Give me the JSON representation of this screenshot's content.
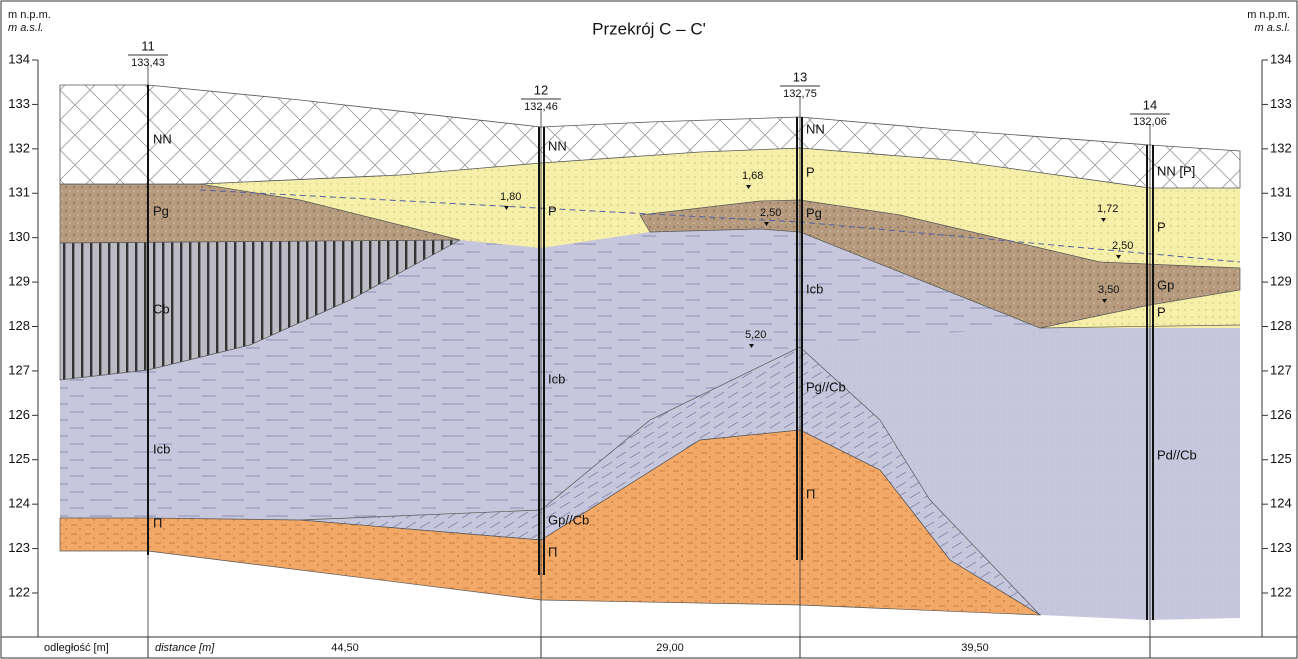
{
  "title": "Przekrój C – C'",
  "axis": {
    "left": [
      "m n.p.m.",
      "m a.s.l."
    ],
    "right": [
      "m n.p.m.",
      "m a.s.l."
    ]
  },
  "yticks": [
    134,
    133,
    132,
    131,
    130,
    129,
    128,
    127,
    126,
    125,
    124,
    123,
    122
  ],
  "boreholes": [
    {
      "id": "11",
      "elevation": "133,43",
      "layers": [
        "NN",
        "Pg",
        "Cb",
        "Icb",
        "Π"
      ],
      "water": []
    },
    {
      "id": "12",
      "elevation": "132,46",
      "layers": [
        "NN",
        "P",
        "Icb",
        "Gp//Cb",
        "Π"
      ],
      "water": [
        "1,80"
      ]
    },
    {
      "id": "13",
      "elevation": "132,75",
      "layers": [
        "NN",
        "P",
        "Pg",
        "Icb",
        "Pg//Cb",
        "Π"
      ],
      "water": [
        "1,68",
        "2,50",
        "5,20"
      ]
    },
    {
      "id": "14",
      "elevation": "132,06",
      "layers": [
        "NN [P]",
        "P",
        "Gp",
        "P",
        "Pd//Cb"
      ],
      "water": [
        "1,72",
        "2,50",
        "3,50"
      ]
    }
  ],
  "distance": {
    "label": "odległość [m]",
    "label_en": "distance [m]",
    "values": [
      "44,50",
      "29,00",
      "39,50"
    ]
  }
}
